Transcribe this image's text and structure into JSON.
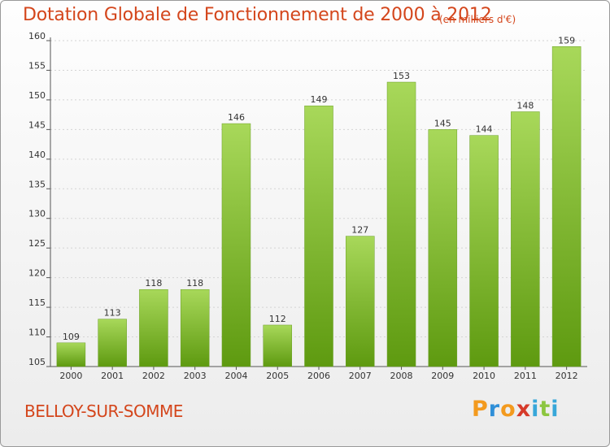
{
  "chart_data": {
    "type": "bar",
    "title": "Dotation Globale de Fonctionnement de 2000 à 2012",
    "unit_note": "(en milliers d'€)",
    "categories": [
      "2000",
      "2001",
      "2002",
      "2003",
      "2004",
      "2005",
      "2006",
      "2007",
      "2008",
      "2009",
      "2010",
      "2011",
      "2012"
    ],
    "values": [
      109,
      113,
      118,
      118,
      146,
      112,
      149,
      127,
      153,
      145,
      144,
      148,
      159
    ],
    "ylim": [
      105,
      160
    ],
    "yticks": [
      105,
      110,
      115,
      120,
      125,
      130,
      135,
      140,
      145,
      150,
      155,
      160
    ],
    "grid": true,
    "xlabel": "",
    "ylabel": ""
  },
  "commune": "BELLOY-SUR-SOMME",
  "brand": {
    "letters": [
      "P",
      "r",
      "o",
      "x",
      "i",
      "t",
      "i"
    ],
    "colors": [
      "#f39a1e",
      "#2f8fd8",
      "#f39a1e",
      "#d63a2a",
      "#37a7d9",
      "#8cc63f",
      "#37a7d9"
    ]
  },
  "colors": {
    "bar_light": "#a8d85a",
    "bar_dark": "#5e9a10",
    "accent": "#d4461c"
  }
}
